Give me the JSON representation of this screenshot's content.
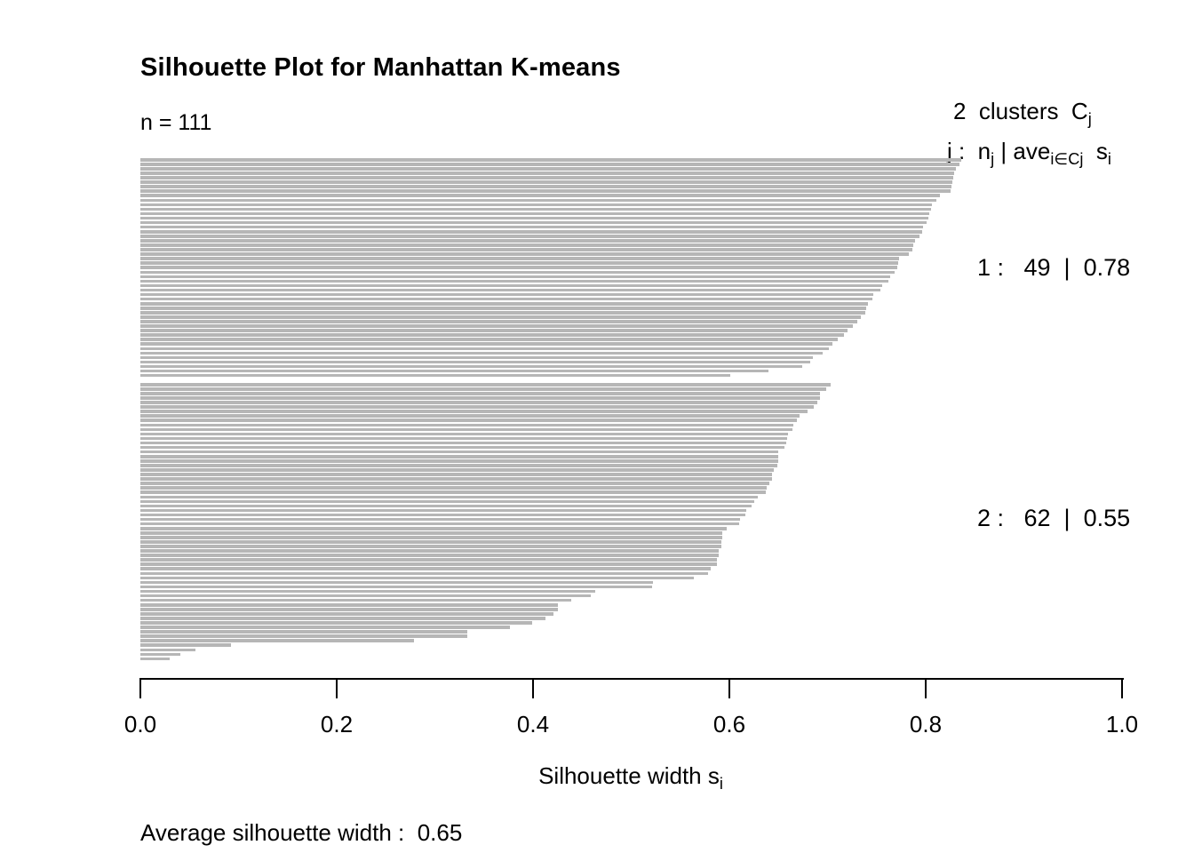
{
  "title": "Silhouette Plot for Manhattan K-means",
  "n_label": "n = 111",
  "legend": {
    "line1": {
      "text": "2  clusters  C",
      "sub": "j"
    },
    "line2": {
      "p1": "j :  n",
      "s1": "j",
      "p2": " | ave",
      "s2": "i∈Cj",
      "p3": "  s",
      "s3": "i"
    },
    "cluster1": "1 :   49  |  0.78",
    "cluster2": "2 :   62  |  0.55"
  },
  "xlabel": {
    "text": "Silhouette width s",
    "sub": "i"
  },
  "average_label": "Average silhouette width :  0.65",
  "chart_data": {
    "type": "bar",
    "variant": "silhouette-plot",
    "title": "Silhouette Plot for Manhattan K-means",
    "n": 111,
    "k_clusters": 2,
    "average_silhouette_width": 0.65,
    "xlabel": "Silhouette width s_i",
    "xlim": [
      0.0,
      1.0
    ],
    "xticks": [
      0.0,
      0.2,
      0.4,
      0.6,
      0.8,
      1.0
    ],
    "bar_color": "#b6b6b6",
    "orientation": "horizontal",
    "legend_position": "right",
    "clusters": [
      {
        "j": 1,
        "size": 49,
        "ave_width": 0.78,
        "values": [
          0.836,
          0.834,
          0.831,
          0.829,
          0.828,
          0.827,
          0.826,
          0.825,
          0.814,
          0.811,
          0.806,
          0.805,
          0.804,
          0.803,
          0.801,
          0.797,
          0.796,
          0.794,
          0.789,
          0.787,
          0.786,
          0.783,
          0.773,
          0.772,
          0.771,
          0.768,
          0.764,
          0.762,
          0.756,
          0.754,
          0.747,
          0.746,
          0.741,
          0.739,
          0.738,
          0.734,
          0.73,
          0.726,
          0.72,
          0.717,
          0.71,
          0.705,
          0.701,
          0.695,
          0.685,
          0.682,
          0.674,
          0.64,
          0.601
        ]
      },
      {
        "j": 2,
        "size": 62,
        "ave_width": 0.55,
        "values": [
          0.703,
          0.699,
          0.692,
          0.692,
          0.69,
          0.686,
          0.68,
          0.671,
          0.669,
          0.665,
          0.664,
          0.66,
          0.659,
          0.658,
          0.656,
          0.65,
          0.65,
          0.65,
          0.649,
          0.645,
          0.643,
          0.643,
          0.641,
          0.638,
          0.637,
          0.629,
          0.625,
          0.623,
          0.617,
          0.616,
          0.611,
          0.61,
          0.597,
          0.593,
          0.593,
          0.592,
          0.592,
          0.589,
          0.589,
          0.587,
          0.587,
          0.581,
          0.578,
          0.564,
          0.522,
          0.521,
          0.463,
          0.459,
          0.439,
          0.425,
          0.425,
          0.421,
          0.413,
          0.399,
          0.376,
          0.333,
          0.333,
          0.279,
          0.092,
          0.056,
          0.041,
          0.03
        ]
      }
    ]
  }
}
